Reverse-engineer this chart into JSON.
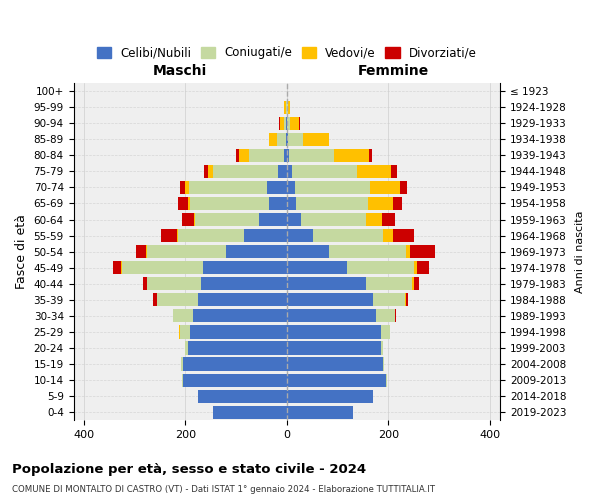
{
  "age_groups": [
    "0-4",
    "5-9",
    "10-14",
    "15-19",
    "20-24",
    "25-29",
    "30-34",
    "35-39",
    "40-44",
    "45-49",
    "50-54",
    "55-59",
    "60-64",
    "65-69",
    "70-74",
    "75-79",
    "80-84",
    "85-89",
    "90-94",
    "95-99",
    "100+"
  ],
  "birth_years": [
    "2019-2023",
    "2014-2018",
    "2009-2013",
    "2004-2008",
    "1999-2003",
    "1994-1998",
    "1989-1993",
    "1984-1988",
    "1979-1983",
    "1974-1978",
    "1969-1973",
    "1964-1968",
    "1959-1963",
    "1954-1958",
    "1949-1953",
    "1944-1948",
    "1939-1943",
    "1934-1938",
    "1929-1933",
    "1924-1928",
    "≤ 1923"
  ],
  "colors": {
    "celibi": "#4472c4",
    "coniugati": "#c5d9a0",
    "vedovi": "#ffc000",
    "divorziati": "#cc0000"
  },
  "maschi": {
    "celibi": [
      145,
      175,
      205,
      205,
      195,
      190,
      185,
      175,
      170,
      165,
      120,
      85,
      55,
      35,
      40,
      18,
      5,
      2,
      1,
      0,
      0
    ],
    "coniugati": [
      0,
      0,
      2,
      3,
      5,
      20,
      40,
      80,
      105,
      160,
      155,
      130,
      125,
      155,
      152,
      128,
      70,
      18,
      5,
      2,
      0
    ],
    "vedovi": [
      0,
      0,
      0,
      0,
      0,
      2,
      0,
      0,
      0,
      2,
      2,
      2,
      2,
      5,
      8,
      10,
      20,
      15,
      8,
      3,
      0
    ],
    "divorziati": [
      0,
      0,
      0,
      0,
      0,
      0,
      0,
      8,
      8,
      15,
      20,
      30,
      25,
      20,
      10,
      8,
      5,
      0,
      2,
      0,
      0
    ]
  },
  "femmine": {
    "celibi": [
      130,
      170,
      195,
      190,
      185,
      185,
      175,
      170,
      155,
      118,
      82,
      52,
      28,
      18,
      16,
      10,
      5,
      3,
      1,
      0,
      0
    ],
    "coniugati": [
      0,
      0,
      2,
      2,
      5,
      18,
      38,
      62,
      92,
      132,
      152,
      138,
      128,
      142,
      148,
      128,
      88,
      28,
      5,
      2,
      0
    ],
    "vedovi": [
      0,
      0,
      0,
      0,
      0,
      0,
      0,
      2,
      3,
      7,
      9,
      18,
      32,
      48,
      58,
      68,
      68,
      52,
      18,
      5,
      1
    ],
    "divorziati": [
      0,
      0,
      0,
      0,
      0,
      0,
      2,
      4,
      10,
      22,
      48,
      42,
      24,
      18,
      14,
      10,
      7,
      0,
      2,
      0,
      0
    ]
  },
  "xlim": 420,
  "xticks": [
    -400,
    -200,
    0,
    200,
    400
  ],
  "title": "Popolazione per età, sesso e stato civile - 2024",
  "subtitle": "COMUNE DI MONTALTO DI CASTRO (VT) - Dati ISTAT 1° gennaio 2024 - Elaborazione TUTTITALIA.IT",
  "xlabel_left": "Maschi",
  "xlabel_right": "Femmine",
  "ylabel_left": "Fasce di età",
  "ylabel_right": "Anni di nascita",
  "legend_labels": [
    "Celibi/Nubili",
    "Coniugati/e",
    "Vedovi/e",
    "Divorziati/e"
  ],
  "bg_color": "#efefef",
  "grid_color": "#cccccc"
}
